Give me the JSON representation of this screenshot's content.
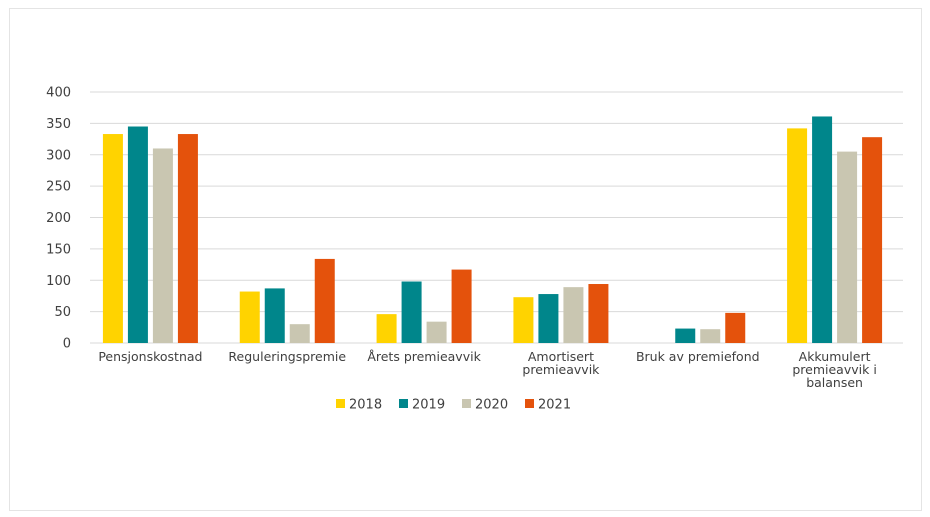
{
  "chart_data": {
    "type": "bar",
    "title": "",
    "xlabel": "",
    "ylabel": "",
    "ylim": [
      0,
      400
    ],
    "yticks": [
      0,
      50,
      100,
      150,
      200,
      250,
      300,
      350,
      400
    ],
    "grid": true,
    "legend_position": "bottom",
    "categories": [
      [
        "Pensjonskostnad"
      ],
      [
        "Reguleringspremie"
      ],
      [
        "Årets premieavvik"
      ],
      [
        "Amortisert",
        "premieavvik"
      ],
      [
        "Bruk av premiefond"
      ],
      [
        "Akkumulert",
        "premieavvik i",
        "balansen"
      ]
    ],
    "series": [
      {
        "name": "2018",
        "color": "#FFD300",
        "values": [
          333,
          82,
          46,
          73,
          0,
          342
        ]
      },
      {
        "name": "2019",
        "color": "#00868B",
        "values": [
          345,
          87,
          98,
          78,
          23,
          361
        ]
      },
      {
        "name": "2020",
        "color": "#C9C6B1",
        "values": [
          310,
          30,
          34,
          89,
          22,
          305
        ]
      },
      {
        "name": "2021",
        "color": "#E4520C",
        "values": [
          333,
          134,
          117,
          94,
          48,
          328
        ]
      }
    ]
  }
}
